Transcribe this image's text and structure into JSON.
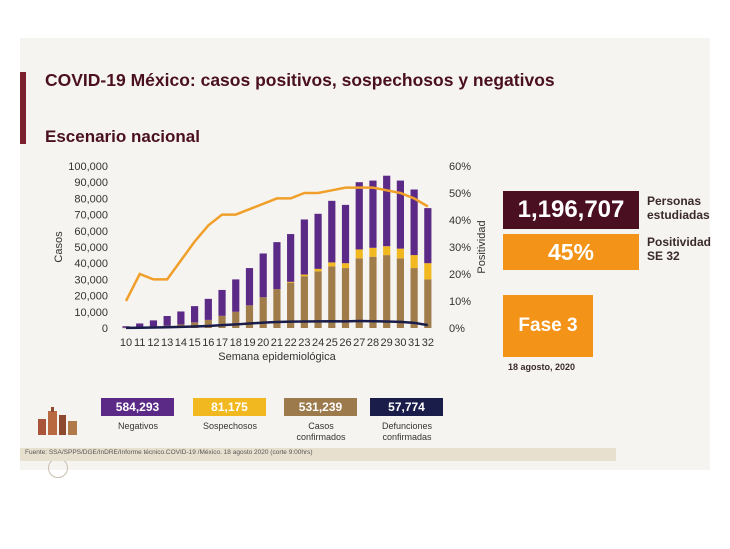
{
  "title": "COVID-19 México: casos positivos, sospechosos y negativos",
  "subtitle": "Escenario nacional",
  "kpi": {
    "people_value": "1,196,707",
    "people_label_1": "Personas",
    "people_label_2": "estudiadas",
    "positivity_value": "45%",
    "positivity_label_1": "Positividad",
    "positivity_label_2": "SE 32"
  },
  "phase": {
    "label": "Fase 3",
    "date": "18 agosto, 2020"
  },
  "totals": [
    {
      "value": "584,293",
      "label_1": "Negativos",
      "label_2": "",
      "color": "#5b2a86"
    },
    {
      "value": "81,175",
      "label_1": "Sospechosos",
      "label_2": "",
      "color": "#f2b820"
    },
    {
      "value": "531,239",
      "label_1": "Casos",
      "label_2": "confirmados",
      "color": "#9c7a4c"
    },
    {
      "value": "57,774",
      "label_1": "Defunciones",
      "label_2": "confirmadas",
      "color": "#1a1d4a"
    }
  ],
  "source": "Fuente: SSA/SPPS/DGE/InDRE/Informe técnico.COVID-19 /México. 18 agosto 2020 (corte 9:00hrs)",
  "colors": {
    "negativos": "#5b2a86",
    "sospechosos": "#f2b820",
    "confirmados": "#a07c4a",
    "defunciones": "#1a1d4a",
    "positividad": "#f0a02a"
  },
  "chart_data": {
    "type": "bar",
    "stacked": true,
    "categories": [
      "10",
      "11",
      "12",
      "13",
      "14",
      "15",
      "16",
      "17",
      "18",
      "19",
      "20",
      "21",
      "22",
      "23",
      "24",
      "25",
      "26",
      "27",
      "28",
      "29",
      "30",
      "31",
      "32"
    ],
    "xlabel": "Semana epidemiológica",
    "ylabel": "Casos",
    "y2label": "Positividad",
    "ylim": [
      0,
      100000
    ],
    "y2lim": [
      0,
      0.6
    ],
    "yticks": [
      "0",
      "10,000",
      "20,000",
      "30,000",
      "40,000",
      "50,000",
      "60,000",
      "70,000",
      "80,000",
      "90,000",
      "100,000"
    ],
    "y2ticks": [
      "0%",
      "10%",
      "20%",
      "30%",
      "40%",
      "50%",
      "60%"
    ],
    "series": [
      {
        "name": "Casos confirmados",
        "values": [
          200,
          500,
          1000,
          1400,
          2200,
          3500,
          5000,
          7500,
          10000,
          14000,
          19000,
          24000,
          28000,
          32000,
          35000,
          38000,
          37000,
          43000,
          44000,
          45000,
          43000,
          37000,
          30000
        ]
      },
      {
        "name": "Sospechosos",
        "values": [
          0,
          0,
          0,
          0,
          0,
          0,
          0,
          0,
          0,
          0,
          0,
          0,
          500,
          1000,
          1500,
          2500,
          3000,
          5500,
          5500,
          5500,
          6000,
          8000,
          10000
        ]
      },
      {
        "name": "Negativos",
        "values": [
          900,
          2300,
          3700,
          6000,
          8000,
          10000,
          13000,
          16000,
          20000,
          23000,
          27000,
          29000,
          29500,
          34000,
          34000,
          38000,
          36000,
          41500,
          41500,
          43500,
          42000,
          40500,
          34000
        ]
      }
    ],
    "lines": [
      {
        "name": "Defunciones confirmadas",
        "axis": "left",
        "values": [
          100,
          150,
          300,
          500,
          700,
          900,
          1200,
          1800,
          2200,
          2800,
          3300,
          3700,
          3900,
          4000,
          4100,
          4200,
          4100,
          4300,
          4200,
          4000,
          3800,
          3200,
          1800
        ]
      },
      {
        "name": "Positividad",
        "axis": "right",
        "values": [
          0.1,
          0.2,
          0.18,
          0.18,
          0.25,
          0.32,
          0.38,
          0.42,
          0.42,
          0.44,
          0.46,
          0.48,
          0.48,
          0.5,
          0.5,
          0.51,
          0.52,
          0.52,
          0.52,
          0.51,
          0.5,
          0.48,
          0.45
        ]
      }
    ]
  }
}
